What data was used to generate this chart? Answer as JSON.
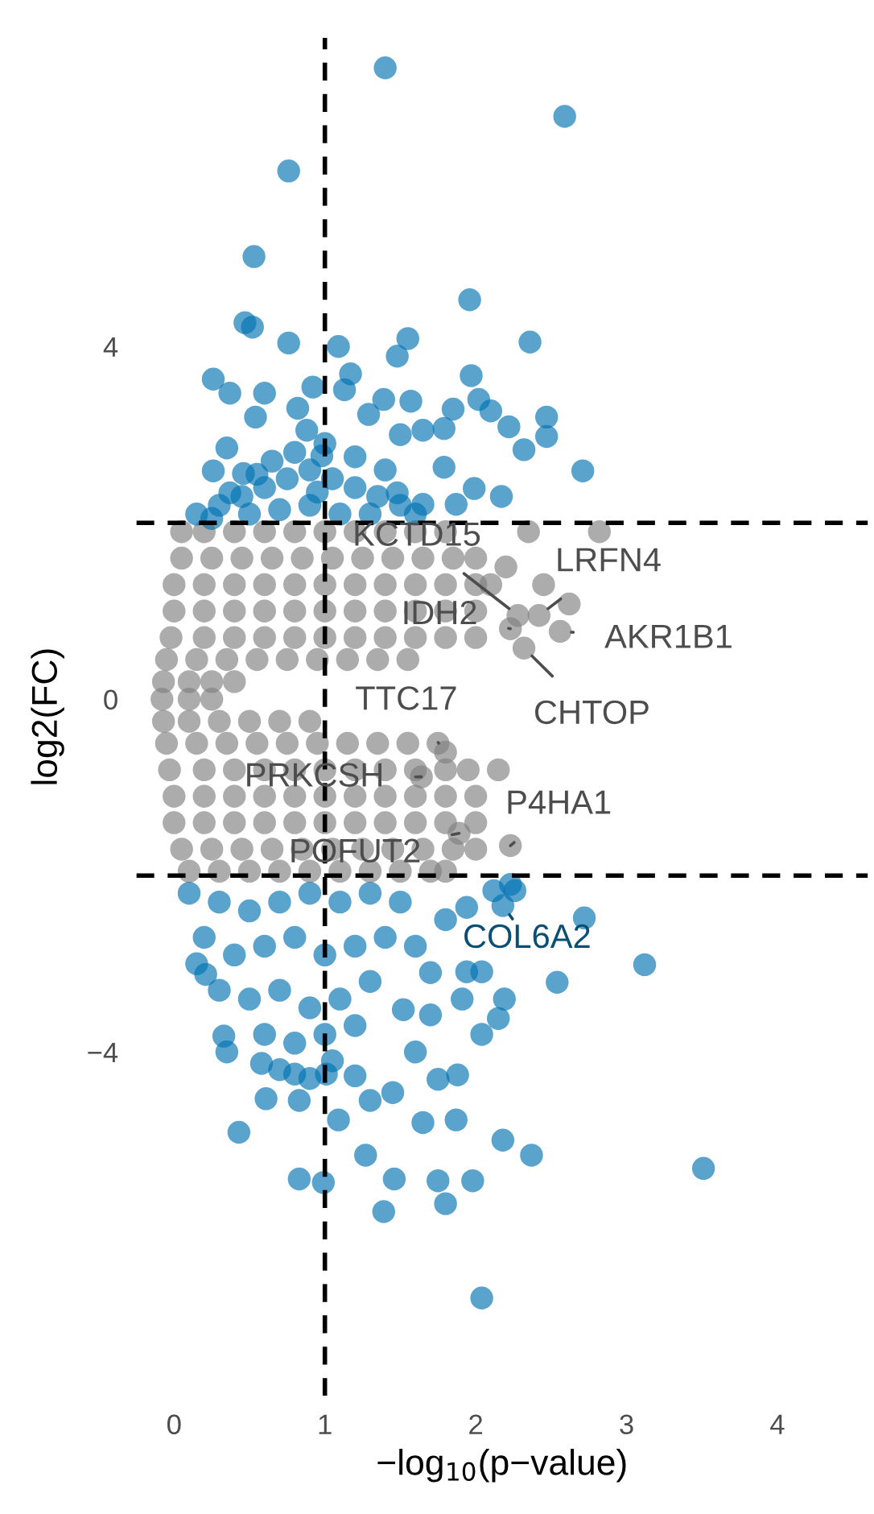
{
  "chart_data": {
    "type": "scatter",
    "xlabel": "−log$_{10}$(p−value)",
    "ylabel": "log2(FC)",
    "xlim": [
      -0.25,
      4.6
    ],
    "ylim": [
      -7.9,
      7.5
    ],
    "xticks": [
      0,
      1,
      2,
      3,
      4
    ],
    "yticks": [
      -4,
      0,
      4
    ],
    "grid": false,
    "marker": "circle",
    "ref_lines": [
      {
        "axis": "x",
        "value": 1,
        "color": "#000000",
        "line_style": "dashed"
      },
      {
        "axis": "y",
        "value": 2,
        "color": "#000000",
        "line_style": "dashed"
      },
      {
        "axis": "y",
        "value": -2,
        "color": "#000000",
        "line_style": "dashed"
      }
    ],
    "series": [
      {
        "color": "#808080",
        "x": [
          0.05,
          0.2,
          0.4,
          0.6,
          0.8,
          1.0,
          1.2,
          1.4,
          1.6,
          1.8,
          0.05,
          0.25,
          0.45,
          0.65,
          0.85,
          1.05,
          1.25,
          1.45,
          1.65,
          1.85,
          2.0,
          0.0,
          0.2,
          0.4,
          0.6,
          0.8,
          1.0,
          1.2,
          1.4,
          1.6,
          1.8,
          2.0,
          2.1,
          0.0,
          0.2,
          0.4,
          0.6,
          0.8,
          1.0,
          1.2,
          1.4,
          1.6,
          1.8,
          2.0,
          -0.02,
          0.2,
          0.4,
          0.6,
          0.8,
          1.0,
          1.2,
          1.4,
          1.6,
          1.8,
          2.0,
          -0.05,
          0.15,
          0.35,
          0.55,
          0.75,
          0.95,
          1.15,
          1.35,
          1.55,
          -0.07,
          0.1,
          0.25,
          0.4,
          -0.08,
          0.1,
          0.25,
          -0.07,
          0.1,
          0.3,
          0.5,
          0.7,
          0.9,
          -0.05,
          0.15,
          0.35,
          0.55,
          0.75,
          0.95,
          1.15,
          1.35,
          1.55,
          1.75,
          -0.03,
          0.2,
          0.4,
          0.6,
          0.8,
          1.0,
          1.2,
          1.4,
          1.6,
          1.8,
          1.95,
          0.0,
          0.2,
          0.4,
          0.6,
          0.8,
          1.0,
          1.2,
          1.4,
          1.6,
          1.8,
          2.0,
          0.0,
          0.2,
          0.4,
          0.6,
          0.8,
          1.0,
          1.2,
          1.4,
          1.6,
          1.8,
          2.0,
          0.05,
          0.25,
          0.45,
          0.65,
          0.85,
          1.05,
          1.25,
          1.45,
          1.65,
          1.85,
          2.0,
          0.1,
          0.3,
          0.5,
          0.7,
          0.9,
          1.1,
          1.3,
          1.5,
          1.7,
          1.8,
          2.35,
          2.82,
          2.62,
          2.56,
          2.15,
          2.28,
          2.42,
          2.23,
          2.32,
          1.8,
          1.64,
          2.23,
          1.89,
          2.45,
          2.2
        ],
        "values": [
          1.9,
          1.9,
          1.9,
          1.9,
          1.9,
          1.9,
          1.9,
          1.9,
          1.9,
          1.9,
          1.6,
          1.6,
          1.6,
          1.6,
          1.6,
          1.6,
          1.6,
          1.6,
          1.6,
          1.6,
          1.6,
          1.3,
          1.3,
          1.3,
          1.3,
          1.3,
          1.3,
          1.3,
          1.3,
          1.3,
          1.3,
          1.3,
          1.3,
          1.0,
          1.0,
          1.0,
          1.0,
          1.0,
          1.0,
          1.0,
          1.0,
          1.0,
          1.0,
          1.0,
          0.7,
          0.7,
          0.7,
          0.7,
          0.7,
          0.7,
          0.7,
          0.7,
          0.7,
          0.7,
          0.7,
          0.45,
          0.45,
          0.45,
          0.45,
          0.45,
          0.45,
          0.45,
          0.45,
          0.45,
          0.2,
          0.2,
          0.2,
          0.2,
          0.0,
          0.0,
          0.0,
          -0.25,
          -0.25,
          -0.25,
          -0.25,
          -0.25,
          -0.25,
          -0.5,
          -0.5,
          -0.5,
          -0.5,
          -0.5,
          -0.5,
          -0.5,
          -0.5,
          -0.5,
          -0.5,
          -0.8,
          -0.8,
          -0.8,
          -0.8,
          -0.8,
          -0.8,
          -0.8,
          -0.8,
          -0.8,
          -0.8,
          -0.8,
          -1.1,
          -1.1,
          -1.1,
          -1.1,
          -1.1,
          -1.1,
          -1.1,
          -1.1,
          -1.1,
          -1.1,
          -1.1,
          -1.4,
          -1.4,
          -1.4,
          -1.4,
          -1.4,
          -1.4,
          -1.4,
          -1.4,
          -1.4,
          -1.4,
          -1.4,
          -1.7,
          -1.7,
          -1.7,
          -1.7,
          -1.7,
          -1.7,
          -1.7,
          -1.7,
          -1.7,
          -1.7,
          -1.7,
          -1.95,
          -1.95,
          -1.95,
          -1.95,
          -1.95,
          -1.95,
          -1.95,
          -1.95,
          -1.95,
          -1.95,
          1.9,
          1.9,
          1.08,
          0.77,
          -0.8,
          0.95,
          0.95,
          0.8,
          0.58,
          -0.6,
          -0.88,
          -1.66,
          -1.52,
          1.3,
          1.5
        ]
      },
      {
        "color": "#0072b2",
        "x": [
          1.4,
          2.59,
          0.76,
          0.53,
          1.96,
          0.47,
          0.52,
          2.36,
          0.76,
          1.09,
          1.55,
          0.26,
          1.17,
          1.97,
          0.37,
          0.6,
          0.92,
          1.39,
          1.57,
          1.85,
          2.02,
          2.1,
          2.47,
          2.47,
          2.22,
          2.32,
          2.71,
          0.35,
          0.26,
          0.54,
          0.82,
          1.13,
          1.48,
          1.29,
          1.5,
          1.65,
          1.79,
          1.79,
          1.99,
          2.17,
          1.65,
          1.87,
          0.46,
          0.37,
          1.48,
          0.88,
          0.98,
          0.15,
          0.3,
          0.45,
          0.6,
          0.75,
          0.9,
          1.05,
          1.2,
          1.35,
          1.5,
          0.5,
          0.7,
          0.9,
          1.1,
          1.3,
          0.8,
          1.0,
          0.65,
          1.2,
          0.25,
          1.6,
          0.55,
          0.95,
          1.4,
          0.43,
          0.61,
          0.83,
          0.99,
          1.27,
          1.39,
          1.46,
          1.75,
          1.8,
          1.98,
          1.65,
          1.87,
          2.18,
          2.37,
          3.51,
          2.04,
          3.12,
          2.54,
          2.72,
          2.26,
          2.23,
          2.04,
          2.19,
          2.15,
          2.04,
          1.88,
          1.75,
          1.6,
          1.45,
          1.3,
          1.2,
          1.09,
          0.83,
          0.8,
          0.58,
          0.33,
          0.35,
          0.21,
          1.01,
          1.91,
          1.94,
          1.94,
          2.12,
          1.52,
          1.7,
          2.18,
          0.1,
          0.3,
          0.5,
          0.7,
          0.9,
          1.1,
          1.3,
          1.5,
          0.2,
          0.4,
          0.6,
          0.8,
          1.0,
          1.2,
          1.4,
          1.6,
          0.3,
          0.5,
          0.7,
          0.9,
          1.1,
          1.3,
          0.6,
          0.8,
          1.0,
          1.2,
          0.7,
          0.9,
          1.05,
          0.15,
          1.8,
          1.7
        ],
        "values": [
          7.16,
          6.61,
          5.99,
          5.02,
          4.53,
          4.27,
          4.22,
          4.05,
          4.04,
          4.0,
          4.09,
          3.63,
          3.69,
          3.67,
          3.47,
          3.47,
          3.54,
          3.4,
          3.38,
          3.29,
          3.4,
          3.27,
          3.2,
          2.98,
          3.09,
          2.83,
          2.59,
          2.85,
          2.59,
          3.2,
          3.3,
          3.51,
          3.89,
          3.23,
          3.0,
          3.05,
          3.07,
          2.63,
          2.39,
          2.3,
          2.21,
          2.21,
          2.56,
          2.34,
          2.34,
          3.05,
          2.76,
          2.1,
          2.2,
          2.3,
          2.4,
          2.5,
          2.6,
          2.5,
          2.4,
          2.3,
          2.2,
          2.1,
          2.15,
          2.2,
          2.1,
          2.1,
          2.8,
          2.9,
          2.7,
          2.75,
          2.05,
          2.1,
          2.55,
          2.35,
          2.6,
          -4.91,
          -4.53,
          -5.44,
          -5.48,
          -5.17,
          -5.81,
          -5.44,
          -5.46,
          -5.72,
          -5.46,
          -4.8,
          -4.77,
          -5.0,
          -5.17,
          -5.32,
          -6.79,
          -3.01,
          -3.21,
          -2.48,
          -2.17,
          -2.1,
          -3.09,
          -3.4,
          -3.62,
          -3.8,
          -4.26,
          -4.31,
          -4.0,
          -4.46,
          -4.55,
          -4.27,
          -4.77,
          -4.55,
          -4.25,
          -4.13,
          -3.82,
          -4.0,
          -3.12,
          -4.25,
          -3.4,
          -3.09,
          -2.36,
          -2.17,
          -3.52,
          -3.58,
          -2.34,
          -2.2,
          -2.3,
          -2.4,
          -2.3,
          -2.2,
          -2.3,
          -2.2,
          -2.3,
          -2.7,
          -2.9,
          -2.8,
          -2.7,
          -2.9,
          -2.8,
          -2.7,
          -2.8,
          -3.3,
          -3.4,
          -3.3,
          -3.5,
          -3.4,
          -3.2,
          -3.8,
          -3.9,
          -3.8,
          -3.7,
          -4.2,
          -4.3,
          -4.1,
          -3.0,
          -2.5,
          -3.1
        ]
      }
    ],
    "annotations": [
      {
        "text": "KCTD15",
        "x": 2.28,
        "y": 0.95
      },
      {
        "text": "LRFN4",
        "x": 2.42,
        "y": 0.95
      },
      {
        "text": "IDH2",
        "x": 2.23,
        "y": 0.8
      },
      {
        "text": "AKR1B1",
        "x": 2.56,
        "y": 0.77
      },
      {
        "text": "CHTOP",
        "x": 2.32,
        "y": 0.58
      },
      {
        "text": "TTC17",
        "x": 1.8,
        "y": -0.6
      },
      {
        "text": "PRKCSH",
        "x": 1.64,
        "y": -0.88
      },
      {
        "text": "P4HA1",
        "x": 2.23,
        "y": -1.66
      },
      {
        "text": "POFUT2",
        "x": 1.89,
        "y": -1.52
      },
      {
        "text": "COL6A2",
        "x": 2.18,
        "y": -2.34
      }
    ]
  }
}
